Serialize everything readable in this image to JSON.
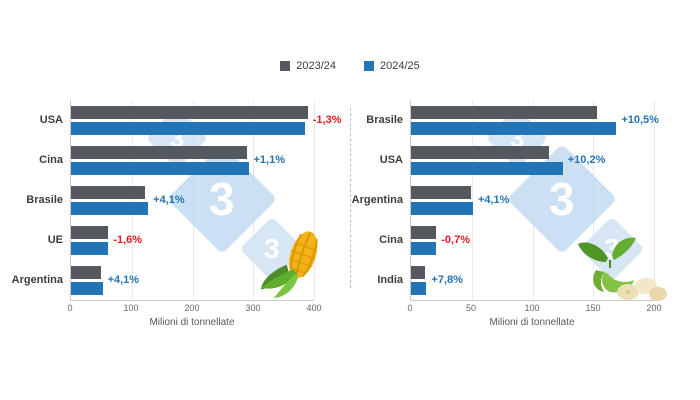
{
  "legend": {
    "items": [
      {
        "label": "2023/24",
        "color": "#54595f"
      },
      {
        "label": "2024/25",
        "color": "#2274b5"
      }
    ]
  },
  "positive_color": "#2274b5",
  "negative_color": "#e8191f",
  "watermark": {
    "text": "3"
  },
  "chart_data": [
    {
      "type": "bar",
      "orientation": "horizontal",
      "subject": "corn",
      "categories": [
        "USA",
        "Cina",
        "Brasile",
        "UE",
        "Argentina"
      ],
      "series": [
        {
          "name": "2023/24",
          "color": "#54595f",
          "values": [
            389.7,
            289.0,
            122.0,
            61.4,
            50.0
          ]
        },
        {
          "name": "2024/25",
          "color": "#2274b5",
          "values": [
            384.6,
            292.2,
            127.0,
            60.4,
            52.0
          ]
        }
      ],
      "change_labels": [
        "-1,3%",
        "+1,1%",
        "+4,1%",
        "-1,6%",
        "+4,1%"
      ],
      "xlabel": "Milioni di tonnellate",
      "xlim": [
        0,
        400
      ],
      "xticks": [
        0,
        100,
        200,
        300,
        400
      ],
      "grid": true,
      "legend_position": "top"
    },
    {
      "type": "bar",
      "orientation": "horizontal",
      "subject": "soybean",
      "categories": [
        "Brasile",
        "USA",
        "Argentina",
        "Cina",
        "India"
      ],
      "series": [
        {
          "name": "2023/24",
          "color": "#54595f",
          "values": [
            153.0,
            113.3,
            49.0,
            20.8,
            11.8
          ]
        },
        {
          "name": "2024/25",
          "color": "#2274b5",
          "values": [
            169.0,
            124.9,
            51.0,
            20.7,
            12.7
          ]
        }
      ],
      "change_labels": [
        "+10,5%",
        "+10,2%",
        "+4,1%",
        "-0,7%",
        "+7,8%"
      ],
      "xlabel": "Milioni di tonnellate",
      "xlim": [
        0,
        200
      ],
      "xticks": [
        0,
        50,
        100,
        150,
        200
      ],
      "grid": true,
      "legend_position": "top"
    }
  ]
}
